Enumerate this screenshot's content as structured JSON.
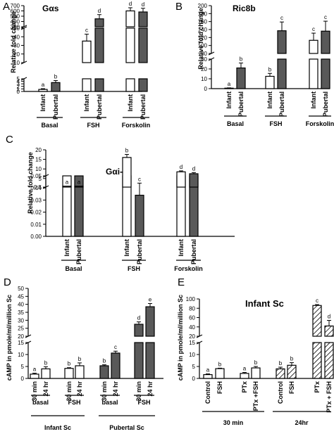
{
  "colors": {
    "infant_fill": "#ffffff",
    "pubertal_fill": "#595959",
    "axis": "#000000"
  },
  "chart_data": [
    {
      "panel": "A",
      "type": "bar",
      "title": "Gαs",
      "ylabel": "Relative fold change",
      "y_segments": [
        {
          "range": [
            0,
            5
          ],
          "ticks": [
            0,
            1,
            2,
            3,
            4,
            5
          ]
        },
        {
          "range": [
            10,
            50
          ],
          "ticks": [
            10,
            20,
            30,
            40,
            50
          ]
        },
        {
          "range": [
            300,
            700
          ],
          "ticks": [
            300,
            400,
            500,
            600,
            700
          ]
        }
      ],
      "categories": [
        "Infant",
        "Pubertal",
        "Infant",
        "Pubertal",
        "Infant",
        "Pubertal"
      ],
      "groups": [
        "Basal",
        "FSH",
        "Forskolin"
      ],
      "series": [
        {
          "values": [
            0.8,
            3.5,
            35,
            450,
            600,
            580
          ],
          "errors": [
            0.3,
            0.8,
            8,
            80,
            60,
            70
          ]
        }
      ],
      "fills": [
        "infant",
        "pubertal",
        "infant",
        "pubertal",
        "infant",
        "pubertal"
      ],
      "letters": [
        "a",
        "b",
        "c",
        "d",
        "d",
        "d"
      ]
    },
    {
      "panel": "B",
      "type": "bar",
      "title": "Ric8b",
      "ylabel": "Relative fold change",
      "y_segments": [
        {
          "range": [
            0,
            30
          ],
          "ticks": [
            0,
            10,
            20,
            30
          ]
        },
        {
          "range": [
            80,
            200
          ],
          "ticks": [
            80,
            100,
            120,
            140,
            160,
            180,
            200
          ]
        }
      ],
      "categories": [
        "Infant",
        "Pubertal",
        "Infant",
        "Pubertal",
        "Infant",
        "Pubertal"
      ],
      "groups": [
        "Basal",
        "FSH",
        "Forskolin"
      ],
      "series": [
        {
          "values": [
            0.5,
            21,
            12.5,
            137,
            113,
            136
          ],
          "errors": [
            0.3,
            5,
            3,
            22,
            18,
            25
          ]
        }
      ],
      "fills": [
        "infant",
        "pubertal",
        "infant",
        "pubertal",
        "infant",
        "pubertal"
      ],
      "letters": [
        "a",
        "b",
        "b",
        "c",
        "c",
        "c"
      ]
    },
    {
      "panel": "C",
      "type": "bar",
      "title": "Gαi-2",
      "ylabel": "Relative fold change",
      "y_segments": [
        {
          "range": [
            0,
            0.05
          ],
          "ticks": [
            0.0,
            0.01,
            0.02,
            0.03,
            0.04,
            0.05
          ]
        },
        {
          "range": [
            0.5,
            20
          ],
          "ticks": [
            0.5,
            5,
            10,
            15,
            20
          ]
        }
      ],
      "categories": [
        "Infant",
        "Pubertal",
        "Infant",
        "Pubertal",
        "Infant",
        "Pubertal"
      ],
      "groups": [
        "Basal",
        "FSH",
        "Forskolin"
      ],
      "series": [
        {
          "values": [
            1,
            1,
            16,
            0.034,
            8.5,
            7.5
          ],
          "errors": [
            0,
            0,
            1.6,
            0.01,
            0.5,
            0.6
          ]
        }
      ],
      "fills": [
        "infant",
        "pubertal",
        "infant",
        "pubertal",
        "infant",
        "pubertal"
      ],
      "letters": [
        "a",
        "a",
        "b",
        "c",
        "d",
        "d"
      ]
    },
    {
      "panel": "D",
      "type": "bar",
      "title": "",
      "ylabel": "cAMP in pmole/ml/million Sc",
      "y_segments": [
        {
          "range": [
            0,
            15
          ],
          "ticks": [
            0,
            5,
            10,
            15
          ]
        },
        {
          "range": [
            20,
            50
          ],
          "ticks": [
            20,
            25,
            30,
            35,
            40,
            45,
            50
          ]
        }
      ],
      "categories": [
        "30 min",
        "24 hr",
        "30 min",
        "24 hr",
        "30 min",
        "24 hr",
        "30 min",
        "24 hr"
      ],
      "groups": [
        "basal",
        "FSH",
        "basal",
        "FSH"
      ],
      "supergroups": [
        "Infant  Sc",
        "Pubertal  Sc"
      ],
      "series": [
        {
          "values": [
            1.8,
            4.0,
            4.2,
            5.3,
            5.3,
            10.6,
            27.5,
            38.5
          ],
          "errors": [
            0.4,
            0.9,
            0.3,
            1.2,
            0.4,
            0.8,
            1.5,
            2
          ]
        }
      ],
      "fills": [
        "infant",
        "infant",
        "infant",
        "infant",
        "pubertal",
        "pubertal",
        "pubertal",
        "pubertal"
      ],
      "letters": [
        "a",
        "b",
        "b",
        "b",
        "b",
        "c",
        "d",
        "e"
      ]
    },
    {
      "panel": "E",
      "type": "bar",
      "title": "Infant Sc",
      "ylabel": "cAMP in pmole/ml/million Sc",
      "y_segments": [
        {
          "range": [
            0,
            15
          ],
          "ticks": [
            0,
            5,
            10,
            15
          ]
        },
        {
          "range": [
            20,
            100
          ],
          "ticks": [
            20,
            40,
            60,
            80,
            100
          ]
        }
      ],
      "categories": [
        "Control",
        "FSH",
        "PTx",
        "PTx +FSH",
        "Control",
        "FSH",
        "PTx",
        "PTx + FSH"
      ],
      "groups": [
        "30 min",
        "24hr"
      ],
      "series": [
        {
          "values": [
            1.6,
            4.1,
            2.1,
            4.4,
            4.0,
            5.5,
            86,
            42
          ],
          "errors": [
            0.3,
            0.2,
            0.4,
            0.6,
            0.7,
            1.1,
            2,
            12
          ]
        }
      ],
      "fills": [
        "open",
        "open",
        "open",
        "open",
        "hatch",
        "hatch",
        "hatch",
        "hatch"
      ],
      "letters": [
        "a",
        "b",
        "a",
        "b",
        "b",
        "b",
        "c",
        "d"
      ]
    }
  ],
  "panel_letters": [
    "A",
    "B",
    "C",
    "D",
    "E"
  ]
}
